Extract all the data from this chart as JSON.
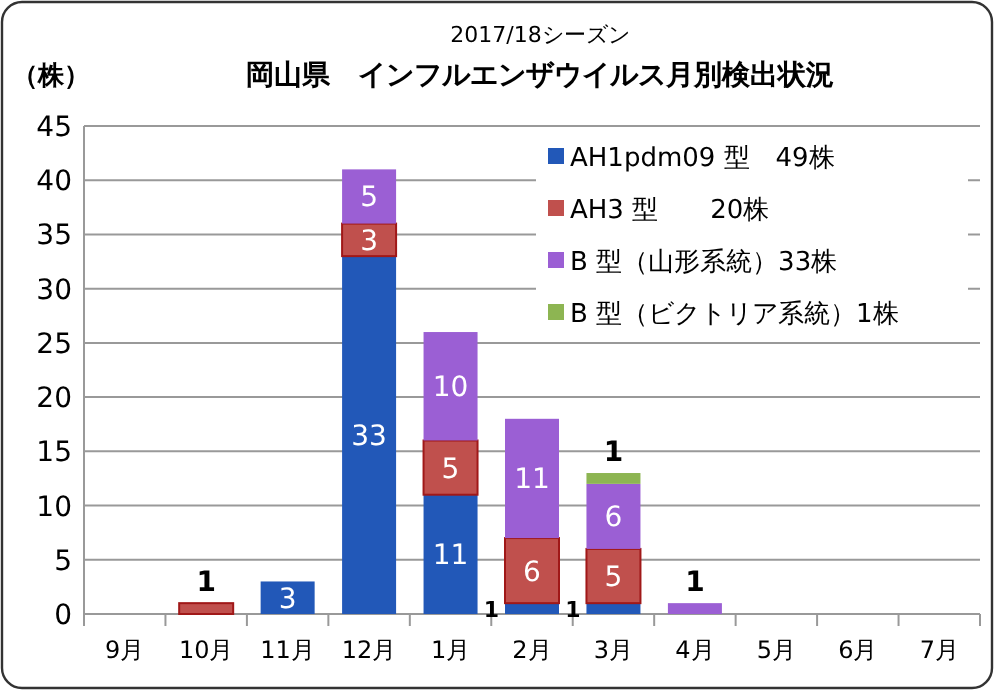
{
  "chart_data": {
    "type": "bar",
    "stacked": true,
    "subtitle": "2017/18シーズン",
    "title": "岡山県　インフルエンザウイルス月別検出状況",
    "ylabel": "（株）",
    "categories": [
      "9月",
      "10月",
      "11月",
      "12月",
      "1月",
      "2月",
      "3月",
      "4月",
      "5月",
      "6月",
      "7月"
    ],
    "ylim": [
      0,
      45
    ],
    "yticks": [
      0,
      5,
      10,
      15,
      20,
      25,
      30,
      35,
      40,
      45
    ],
    "grid": "y",
    "legend": "top right",
    "series": [
      {
        "name": "AH1pdm09 型　49株",
        "color": "#2258b8",
        "values": [
          0,
          0,
          3,
          33,
          11,
          1,
          1,
          0,
          0,
          0,
          0
        ],
        "value_labels": [
          null,
          null,
          "3",
          "33",
          "11",
          "1",
          "1",
          null,
          null,
          null,
          null
        ]
      },
      {
        "name": "AH3 型　　20株",
        "color": "#c0504d",
        "values": [
          0,
          1,
          0,
          3,
          5,
          6,
          5,
          0,
          0,
          0,
          0
        ],
        "value_labels": [
          null,
          "1",
          null,
          "3",
          "5",
          "6",
          "5",
          null,
          null,
          null,
          null
        ]
      },
      {
        "name": "B 型（山形系統）33株",
        "color": "#9b5fd4",
        "values": [
          0,
          0,
          0,
          5,
          10,
          11,
          6,
          1,
          0,
          0,
          0
        ],
        "value_labels": [
          null,
          null,
          null,
          "5",
          "10",
          "11",
          "6",
          "1",
          null,
          null,
          null
        ]
      },
      {
        "name": "B 型（ビクトリア系統）1株",
        "color": "#8db552",
        "values": [
          0,
          0,
          0,
          0,
          0,
          0,
          1,
          0,
          0,
          0,
          0
        ],
        "value_labels": [
          null,
          null,
          null,
          null,
          null,
          null,
          "1",
          null,
          null,
          null,
          null
        ]
      }
    ]
  }
}
